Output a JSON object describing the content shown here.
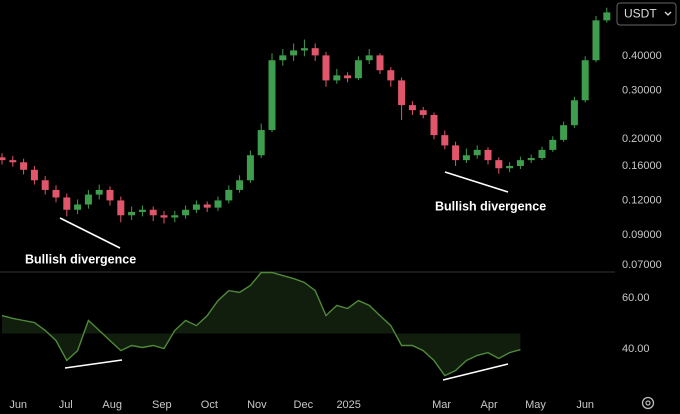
{
  "toolbar": {
    "currency": "USDT"
  },
  "chart_data": [
    {
      "type": "candlestick",
      "annotations": [
        "Bullish divergence",
        "Bullish divergence"
      ],
      "up_color": "#3f9d4e",
      "down_color": "#e2566b",
      "log_scale": true,
      "ylim": [
        0.066,
        0.64
      ],
      "yticks": [
        {
          "value": 0.4,
          "label": "0.40000"
        },
        {
          "value": 0.3,
          "label": "0.30000"
        },
        {
          "value": 0.2,
          "label": "0.20000"
        },
        {
          "value": 0.16,
          "label": "0.16000"
        },
        {
          "value": 0.12,
          "label": "0.12000"
        },
        {
          "value": 0.09,
          "label": "0.09000"
        },
        {
          "value": 0.07,
          "label": "0.07000"
        }
      ],
      "open": [
        0.172,
        0.168,
        0.165,
        0.155,
        0.142,
        0.131,
        0.123,
        0.111,
        0.116,
        0.126,
        0.131,
        0.12,
        0.106,
        0.109,
        0.111,
        0.106,
        0.104,
        0.106,
        0.111,
        0.116,
        0.113,
        0.12,
        0.131,
        0.142,
        0.175,
        0.216,
        0.387,
        0.403,
        0.42,
        0.428,
        0.403,
        0.327,
        0.341,
        0.333,
        0.387,
        0.403,
        0.356,
        0.327,
        0.266,
        0.255,
        0.245,
        0.207,
        0.19,
        0.168,
        0.175,
        0.183,
        0.168,
        0.157,
        0.16,
        0.168,
        0.171,
        0.183,
        0.199,
        0.225,
        0.277,
        0.387,
        0.54
      ],
      "high": [
        0.178,
        0.174,
        0.17,
        0.16,
        0.147,
        0.136,
        0.127,
        0.121,
        0.131,
        0.137,
        0.135,
        0.124,
        0.114,
        0.115,
        0.114,
        0.11,
        0.11,
        0.115,
        0.12,
        0.119,
        0.124,
        0.136,
        0.148,
        0.182,
        0.228,
        0.41,
        0.425,
        0.445,
        0.46,
        0.445,
        0.415,
        0.36,
        0.35,
        0.4,
        0.425,
        0.41,
        0.365,
        0.335,
        0.275,
        0.262,
        0.25,
        0.215,
        0.196,
        0.185,
        0.19,
        0.187,
        0.172,
        0.165,
        0.173,
        0.176,
        0.188,
        0.205,
        0.232,
        0.285,
        0.4,
        0.56,
        0.6
      ],
      "low": [
        0.162,
        0.159,
        0.149,
        0.137,
        0.126,
        0.118,
        0.105,
        0.107,
        0.112,
        0.121,
        0.115,
        0.1,
        0.102,
        0.105,
        0.101,
        0.099,
        0.1,
        0.103,
        0.108,
        0.109,
        0.11,
        0.117,
        0.128,
        0.139,
        0.171,
        0.212,
        0.37,
        0.385,
        0.4,
        0.385,
        0.31,
        0.318,
        0.322,
        0.328,
        0.375,
        0.345,
        0.31,
        0.235,
        0.245,
        0.238,
        0.2,
        0.184,
        0.16,
        0.164,
        0.17,
        0.162,
        0.15,
        0.152,
        0.156,
        0.164,
        0.168,
        0.18,
        0.196,
        0.22,
        0.272,
        0.38,
        0.53
      ],
      "close": [
        0.168,
        0.165,
        0.155,
        0.142,
        0.131,
        0.123,
        0.111,
        0.116,
        0.126,
        0.131,
        0.12,
        0.106,
        0.109,
        0.111,
        0.106,
        0.104,
        0.106,
        0.111,
        0.116,
        0.113,
        0.12,
        0.131,
        0.142,
        0.175,
        0.216,
        0.387,
        0.403,
        0.42,
        0.428,
        0.403,
        0.327,
        0.341,
        0.333,
        0.387,
        0.403,
        0.356,
        0.327,
        0.266,
        0.255,
        0.245,
        0.207,
        0.19,
        0.168,
        0.175,
        0.183,
        0.168,
        0.157,
        0.16,
        0.168,
        0.171,
        0.183,
        0.199,
        0.225,
        0.277,
        0.387,
        0.54,
        0.577
      ]
    },
    {
      "type": "line",
      "color": "#4f8a3a",
      "ylim": [
        22,
        70.2
      ],
      "yticks": [
        {
          "value": 60,
          "label": "60.00"
        },
        {
          "value": 40,
          "label": "40.00"
        }
      ],
      "values": [
        53.1,
        52.0,
        51.2,
        50.4,
        47.3,
        43.3,
        35.5,
        39.4,
        51.2,
        47.3,
        43.3,
        39.4,
        41.4,
        40.6,
        41.4,
        40.2,
        47.3,
        51.2,
        49.2,
        53.1,
        59.0,
        62.9,
        62.2,
        64.9,
        70.0,
        70.0,
        68.8,
        67.6,
        66.1,
        62.9,
        53.1,
        57.1,
        55.9,
        59.0,
        57.1,
        53.1,
        49.2,
        41.4,
        41.4,
        39.4,
        35.5,
        29.6,
        31.6,
        35.5,
        37.5,
        38.6,
        36.3,
        38.6,
        39.8,
        null,
        null,
        null,
        null,
        null,
        null,
        null,
        null
      ],
      "xticks": [
        {
          "value": 1.5,
          "label": "Jun"
        },
        {
          "value": 5.9,
          "label": "Jul"
        },
        {
          "value": 10.2,
          "label": "Aug"
        },
        {
          "value": 14.8,
          "label": "Sep"
        },
        {
          "value": 19.2,
          "label": "Oct"
        },
        {
          "value": 23.6,
          "label": "Nov"
        },
        {
          "value": 27.9,
          "label": "Dec"
        },
        {
          "value": 32.1,
          "label": "2025"
        },
        {
          "value": 40.7,
          "label": "Mar"
        },
        {
          "value": 45.1,
          "label": "Apr"
        },
        {
          "value": 49.4,
          "label": "May"
        },
        {
          "value": 54.0,
          "label": "Jun"
        }
      ]
    }
  ]
}
